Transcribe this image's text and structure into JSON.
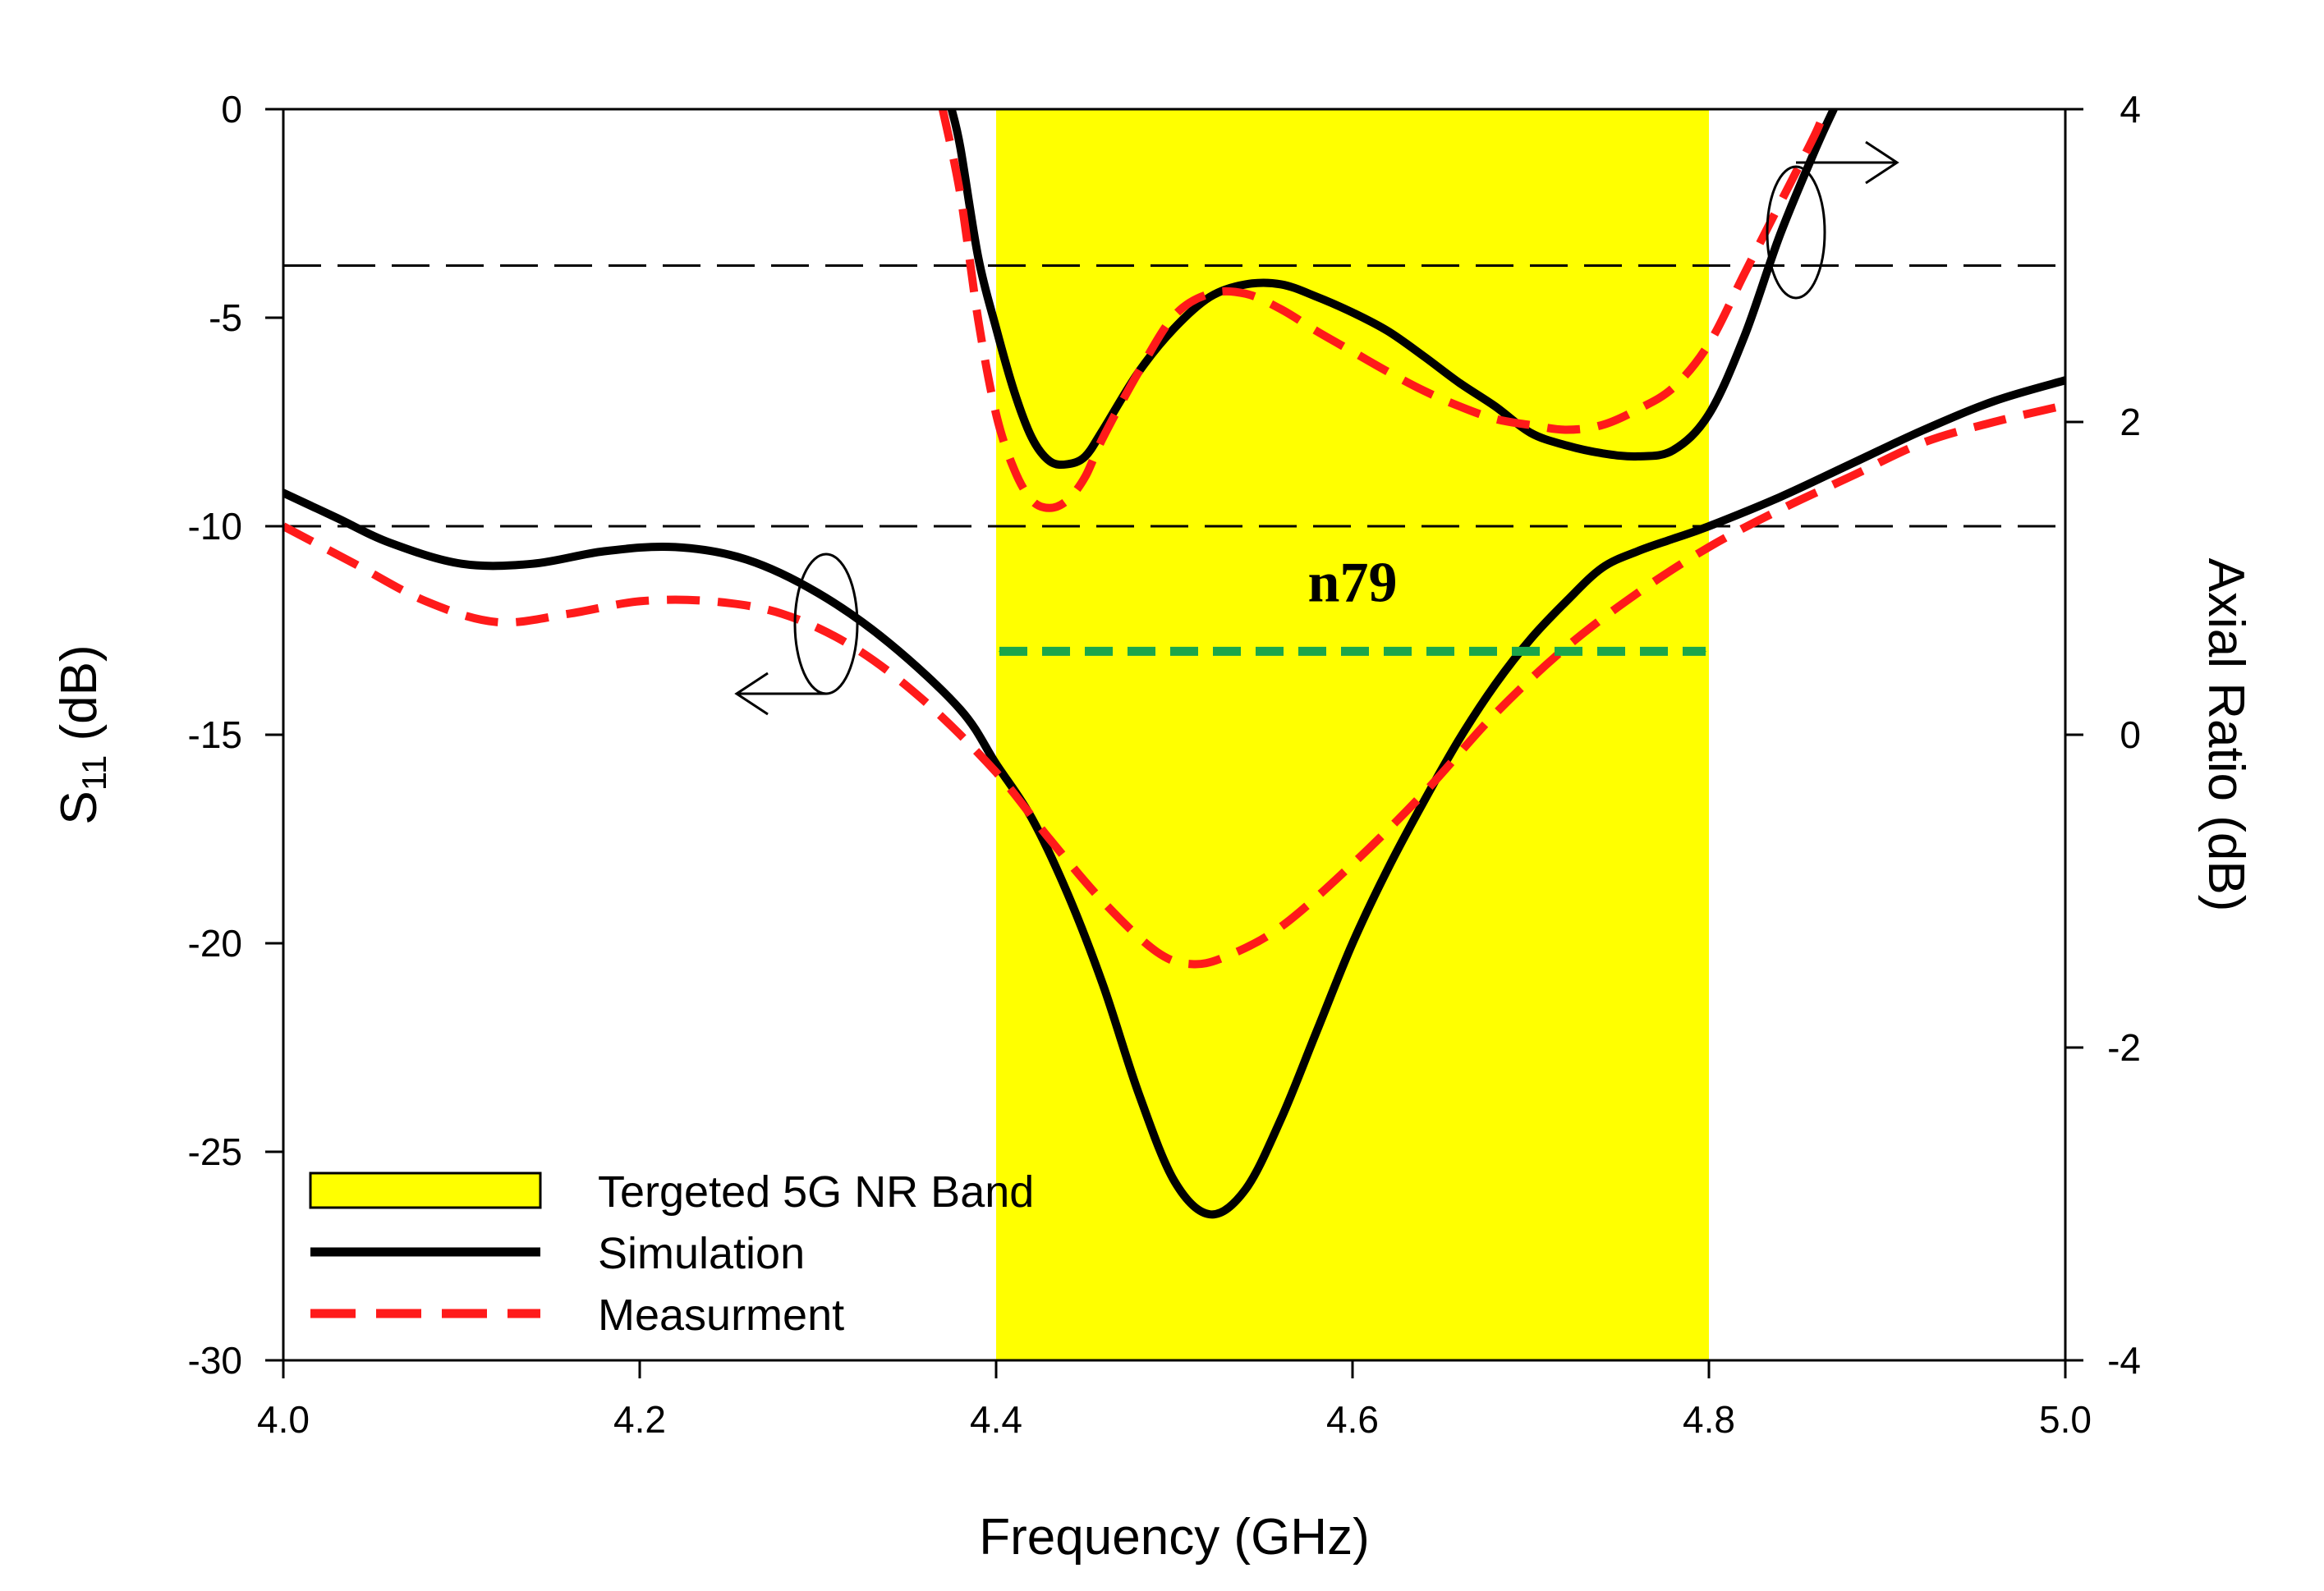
{
  "chart_data": {
    "type": "line",
    "title": "",
    "xlabel": "Frequency (GHz)",
    "ylabel_left": {
      "main": "S",
      "sub": "11",
      "unit": " (dB)"
    },
    "ylabel_right": "Axial Ratio (dB)",
    "xlim": [
      4.0,
      5.0
    ],
    "ylim_left": [
      -30,
      0
    ],
    "ylim_right": [
      -4,
      4
    ],
    "x_ticks": [
      "4.0",
      "4.2",
      "4.4",
      "4.6",
      "4.8",
      "5.0"
    ],
    "y_ticks_left": [
      "0",
      "-5",
      "-10",
      "-15",
      "-20",
      "-25",
      "-30"
    ],
    "y_ticks_right": [
      "4",
      "2",
      "0",
      "-2",
      "-4"
    ],
    "band": {
      "x_start": 4.4,
      "x_end": 4.8,
      "label": "n79",
      "color": "#ffff00"
    },
    "reference_lines": [
      {
        "axis": "left",
        "value": -10
      },
      {
        "axis": "right",
        "value": 3
      }
    ],
    "legend": {
      "position": "bottom-left",
      "entries": [
        {
          "label": "Tergeted 5G NR Band",
          "style": "box"
        },
        {
          "label": "Simulation",
          "style": "solid"
        },
        {
          "label": "Measurment",
          "style": "dashed"
        }
      ]
    },
    "series": [
      {
        "name": "Simulation",
        "quantity": "S11",
        "axis": "left",
        "color": "#000000",
        "style": "solid",
        "x": [
          4.0,
          4.03,
          4.06,
          4.1,
          4.14,
          4.18,
          4.22,
          4.26,
          4.3,
          4.34,
          4.38,
          4.4,
          4.42,
          4.44,
          4.46,
          4.48,
          4.5,
          4.52,
          4.54,
          4.56,
          4.58,
          4.6,
          4.62,
          4.64,
          4.66,
          4.68,
          4.7,
          4.72,
          4.74,
          4.76,
          4.78,
          4.8,
          4.84,
          4.88,
          4.92,
          4.96,
          5.0
        ],
        "y": [
          -9.2,
          -9.8,
          -10.4,
          -10.9,
          -10.9,
          -10.6,
          -10.5,
          -10.8,
          -11.6,
          -12.8,
          -14.4,
          -15.7,
          -17.0,
          -18.8,
          -21.0,
          -23.6,
          -25.7,
          -26.5,
          -25.9,
          -24.2,
          -22.1,
          -20.0,
          -18.2,
          -16.6,
          -15.1,
          -13.8,
          -12.7,
          -11.8,
          -11.0,
          -10.6,
          -10.3,
          -10.0,
          -9.3,
          -8.5,
          -7.7,
          -7.0,
          -6.5
        ]
      },
      {
        "name": "Measurment",
        "quantity": "S11",
        "axis": "left",
        "color": "#ff1a1a",
        "style": "dashed",
        "x": [
          4.0,
          4.04,
          4.08,
          4.12,
          4.16,
          4.2,
          4.24,
          4.28,
          4.32,
          4.36,
          4.4,
          4.43,
          4.46,
          4.49,
          4.51,
          4.53,
          4.56,
          4.6,
          4.64,
          4.68,
          4.72,
          4.76,
          4.8,
          4.84,
          4.88,
          4.92,
          4.96,
          5.0
        ],
        "y": [
          -10.0,
          -10.9,
          -11.8,
          -12.3,
          -12.1,
          -11.8,
          -11.8,
          -12.1,
          -12.9,
          -14.2,
          -15.9,
          -17.5,
          -19.0,
          -20.2,
          -20.5,
          -20.3,
          -19.6,
          -18.1,
          -16.4,
          -14.5,
          -12.9,
          -11.6,
          -10.5,
          -9.6,
          -8.8,
          -8.0,
          -7.5,
          -7.1
        ]
      },
      {
        "name": "Simulation",
        "quantity": "Axial Ratio",
        "axis": "right",
        "color": "#000000",
        "style": "solid",
        "x": [
          4.375,
          4.38,
          4.39,
          4.4,
          4.41,
          4.42,
          4.43,
          4.44,
          4.45,
          4.46,
          4.48,
          4.5,
          4.52,
          4.54,
          4.56,
          4.58,
          4.6,
          4.62,
          4.64,
          4.66,
          4.68,
          4.7,
          4.72,
          4.74,
          4.76,
          4.78,
          4.8,
          4.82,
          4.84,
          4.86,
          4.87
        ],
        "y": [
          4.0,
          3.75,
          3.05,
          2.6,
          2.2,
          1.9,
          1.75,
          1.73,
          1.78,
          1.95,
          2.32,
          2.6,
          2.8,
          2.88,
          2.88,
          2.8,
          2.7,
          2.58,
          2.42,
          2.25,
          2.1,
          1.93,
          1.85,
          1.8,
          1.78,
          1.82,
          2.05,
          2.55,
          3.2,
          3.75,
          4.0
        ]
      },
      {
        "name": "Measurment",
        "quantity": "Axial Ratio",
        "axis": "right",
        "color": "#ff1a1a",
        "style": "dashed",
        "x": [
          4.37,
          4.38,
          4.39,
          4.4,
          4.41,
          4.42,
          4.43,
          4.44,
          4.45,
          4.46,
          4.48,
          4.5,
          4.52,
          4.54,
          4.56,
          4.58,
          4.6,
          4.62,
          4.64,
          4.66,
          4.68,
          4.7,
          4.72,
          4.74,
          4.76,
          4.78,
          4.8,
          4.82,
          4.84,
          4.86,
          4.865
        ],
        "y": [
          4.0,
          3.45,
          2.65,
          2.05,
          1.7,
          1.5,
          1.45,
          1.5,
          1.65,
          1.9,
          2.32,
          2.68,
          2.82,
          2.82,
          2.72,
          2.58,
          2.45,
          2.32,
          2.2,
          2.1,
          2.02,
          1.98,
          1.95,
          1.98,
          2.08,
          2.22,
          2.5,
          2.95,
          3.4,
          3.85,
          4.0
        ]
      }
    ]
  }
}
